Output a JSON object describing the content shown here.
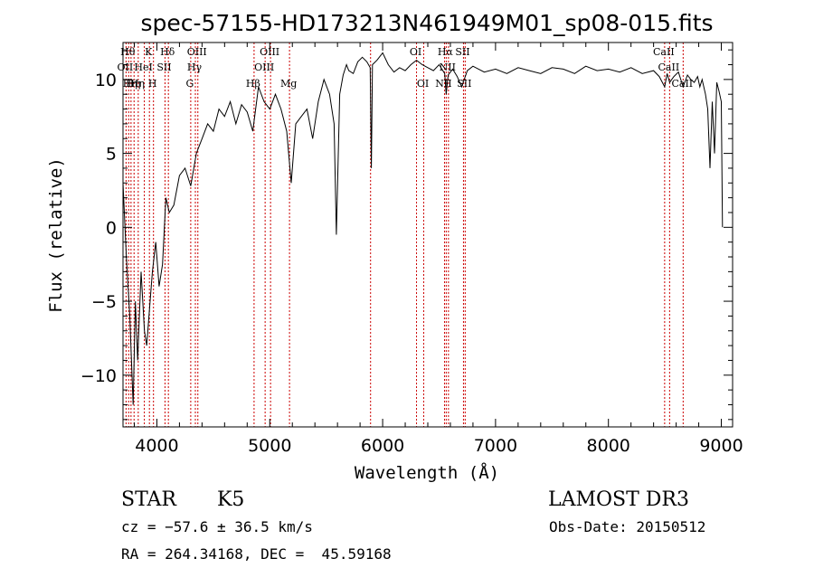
{
  "chart_data": {
    "type": "line",
    "title": "spec-57155-HD173213N461949M01_sp08-015.fits",
    "xlabel": "Wavelength (Å)",
    "ylabel": "Flux (relative)",
    "xlim": [
      3700,
      9100
    ],
    "ylim": [
      -13.5,
      12.5
    ],
    "xticks": [
      4000,
      5000,
      6000,
      7000,
      8000,
      9000
    ],
    "xtick_labels": [
      "4000",
      "5000",
      "6000",
      "7000",
      "8000",
      "9000"
    ],
    "yticks": [
      -10,
      -5,
      0,
      5,
      10
    ],
    "ytick_labels": [
      "−10",
      "−5",
      "0",
      "5",
      "10"
    ],
    "series": [
      {
        "name": "flux",
        "color": "#000000",
        "x": [
          3700,
          3730,
          3760,
          3790,
          3810,
          3830,
          3860,
          3890,
          3910,
          3930,
          3960,
          3990,
          4020,
          4050,
          4080,
          4110,
          4150,
          4200,
          4250,
          4300,
          4350,
          4400,
          4450,
          4500,
          4550,
          4600,
          4650,
          4700,
          4750,
          4800,
          4850,
          4900,
          4950,
          5000,
          5050,
          5100,
          5150,
          5190,
          5230,
          5280,
          5330,
          5380,
          5430,
          5480,
          5530,
          5570,
          5590,
          5620,
          5650,
          5680,
          5700,
          5740,
          5780,
          5820,
          5860,
          5890,
          5900,
          5910,
          5950,
          6000,
          6050,
          6100,
          6150,
          6200,
          6250,
          6300,
          6350,
          6400,
          6450,
          6500,
          6550,
          6563,
          6580,
          6620,
          6660,
          6700,
          6750,
          6800,
          6900,
          7000,
          7100,
          7200,
          7300,
          7400,
          7500,
          7600,
          7700,
          7800,
          7900,
          8000,
          8100,
          8200,
          8300,
          8400,
          8450,
          8498,
          8520,
          8542,
          8580,
          8620,
          8662,
          8700,
          8730,
          8760,
          8790,
          8810,
          8830,
          8860,
          8880,
          8900,
          8920,
          8940,
          8960,
          8980,
          9000,
          9010
        ],
        "values": [
          3.0,
          -2.0,
          -6.0,
          -12.0,
          -5.0,
          -9.0,
          -3.0,
          -7.0,
          -8.0,
          -6.0,
          -3.0,
          -1.0,
          -4.0,
          -2.5,
          2.0,
          1.0,
          1.5,
          3.5,
          4.0,
          2.8,
          5.0,
          6.0,
          7.0,
          6.5,
          8.0,
          7.5,
          8.5,
          7.0,
          8.3,
          7.8,
          6.5,
          9.5,
          8.5,
          8.0,
          9.0,
          8.0,
          6.5,
          3.0,
          7.0,
          7.5,
          8.0,
          6.0,
          8.5,
          10.0,
          9.0,
          7.0,
          -0.5,
          9.0,
          10.3,
          11.0,
          10.6,
          10.4,
          11.2,
          11.5,
          11.2,
          10.8,
          4.0,
          11.0,
          11.3,
          11.8,
          11.0,
          10.5,
          10.8,
          10.6,
          11.0,
          11.3,
          11.0,
          10.8,
          10.6,
          11.0,
          10.4,
          9.0,
          10.3,
          10.7,
          10.2,
          9.5,
          10.6,
          10.9,
          10.5,
          10.7,
          10.4,
          10.8,
          10.6,
          10.4,
          10.8,
          10.7,
          10.4,
          10.9,
          10.6,
          10.7,
          10.5,
          10.8,
          10.4,
          10.6,
          10.2,
          9.5,
          10.4,
          9.8,
          10.2,
          10.5,
          9.5,
          10.3,
          10.0,
          9.8,
          10.2,
          9.5,
          10.0,
          9.0,
          8.0,
          4.0,
          8.5,
          5.0,
          9.8,
          9.2,
          8.5,
          0.0
        ]
      }
    ],
    "line_markers": [
      {
        "wavelength": 3727,
        "label": "OII",
        "row": 2
      },
      {
        "wavelength": 3750,
        "label": "Hθ",
        "row": 1
      },
      {
        "wavelength": 3771,
        "label": "Hη",
        "row": 3
      },
      {
        "wavelength": 3798,
        "label": "Hη",
        "row": 3
      },
      {
        "wavelength": 3835,
        "label": "Hη",
        "row": 3
      },
      {
        "wavelength": 3889,
        "label": "HeI",
        "row": 2
      },
      {
        "wavelength": 3934,
        "label": "K",
        "row": 1
      },
      {
        "wavelength": 3970,
        "label": "H",
        "row": 3
      },
      {
        "wavelength": 4072,
        "label": "SII",
        "row": 2
      },
      {
        "wavelength": 4102,
        "label": "Hδ",
        "row": 1
      },
      {
        "wavelength": 4300,
        "label": "G",
        "row": 3
      },
      {
        "wavelength": 4341,
        "label": "Hγ",
        "row": 2
      },
      {
        "wavelength": 4363,
        "label": "OIII",
        "row": 1
      },
      {
        "wavelength": 4861,
        "label": "Hβ",
        "row": 3
      },
      {
        "wavelength": 4959,
        "label": "OIII",
        "row": 2
      },
      {
        "wavelength": 5007,
        "label": "OIII",
        "row": 1
      },
      {
        "wavelength": 5175,
        "label": "Mg",
        "row": 3
      },
      {
        "wavelength": 5893,
        "label": "",
        "row": 0
      },
      {
        "wavelength": 6300,
        "label": "OI",
        "row": 1
      },
      {
        "wavelength": 6364,
        "label": "OI",
        "row": 3
      },
      {
        "wavelength": 6548,
        "label": "NII",
        "row": 3
      },
      {
        "wavelength": 6563,
        "label": "Hα",
        "row": 1
      },
      {
        "wavelength": 6583,
        "label": "NII",
        "row": 2
      },
      {
        "wavelength": 6716,
        "label": "SII",
        "row": 1
      },
      {
        "wavelength": 6731,
        "label": "SII",
        "row": 3
      },
      {
        "wavelength": 8498,
        "label": "CaII",
        "row": 1
      },
      {
        "wavelength": 8542,
        "label": "CaII",
        "row": 2
      },
      {
        "wavelength": 8662,
        "label": "CaII",
        "row": 3
      }
    ],
    "line_color": "#cc0000"
  },
  "info": {
    "object_class": "STAR",
    "subclass": "K5",
    "survey": "LAMOST DR3",
    "cz": "cz = −57.6 ± 36.5 km/s",
    "obs_date": "Obs-Date: 20150512",
    "coords": "RA = 264.34168, DEC =  45.59168"
  }
}
